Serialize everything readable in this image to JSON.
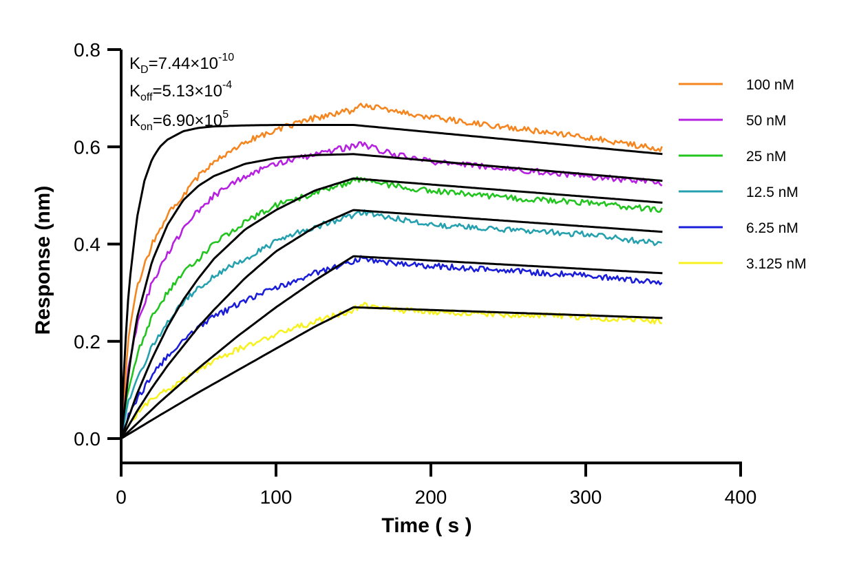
{
  "chart_data": {
    "type": "line",
    "xlabel": "Time ( s )",
    "ylabel": "Response (nm)",
    "xlim": [
      0,
      400
    ],
    "ylim": [
      -0.05,
      0.8
    ],
    "xticks": [
      "0",
      "100",
      "200",
      "300",
      "400"
    ],
    "yticks": [
      "0.0",
      "0.2",
      "0.4",
      "0.6",
      "0.8"
    ],
    "grid": false,
    "legend_position": "right",
    "annotations": {
      "kd": {
        "base": "K",
        "sub": "D",
        "value": "=7.44×10",
        "sup": "-10"
      },
      "koff": {
        "base": "K",
        "sub": "off",
        "value": "=5.13×10",
        "sup": "-4"
      },
      "kon": {
        "base": "K",
        "sub": "on",
        "value": "=6.90×10",
        "sup": "5"
      }
    },
    "fit_line_color": "#000000",
    "series": [
      {
        "name": "100 nM",
        "color": "#F5861F",
        "x": [
          0,
          5,
          10,
          20,
          30,
          40,
          50,
          60,
          80,
          100,
          120,
          140,
          150,
          155,
          175,
          200,
          250,
          300,
          350
        ],
        "y": [
          0,
          0.22,
          0.31,
          0.4,
          0.46,
          0.5,
          0.54,
          0.57,
          0.61,
          0.635,
          0.655,
          0.67,
          0.675,
          0.685,
          0.675,
          0.66,
          0.64,
          0.62,
          0.595
        ],
        "fit_x": [
          0,
          2,
          5,
          10,
          15,
          20,
          25,
          30,
          40,
          50,
          60,
          80,
          100,
          125,
          150,
          350
        ],
        "fit_y": [
          0,
          0.16,
          0.31,
          0.45,
          0.53,
          0.575,
          0.6,
          0.615,
          0.632,
          0.639,
          0.642,
          0.644,
          0.645,
          0.645,
          0.645,
          0.585
        ]
      },
      {
        "name": "50 nM",
        "color": "#B620E0",
        "x": [
          0,
          5,
          10,
          20,
          30,
          40,
          50,
          60,
          80,
          100,
          120,
          140,
          150,
          155,
          175,
          200,
          250,
          300,
          350
        ],
        "y": [
          0,
          0.15,
          0.23,
          0.32,
          0.38,
          0.43,
          0.47,
          0.5,
          0.54,
          0.565,
          0.58,
          0.595,
          0.6,
          0.605,
          0.585,
          0.57,
          0.555,
          0.54,
          0.525
        ],
        "fit_x": [
          0,
          5,
          10,
          20,
          30,
          40,
          50,
          60,
          80,
          100,
          125,
          150,
          350
        ],
        "fit_y": [
          0,
          0.14,
          0.245,
          0.365,
          0.44,
          0.49,
          0.52,
          0.54,
          0.565,
          0.577,
          0.583,
          0.585,
          0.53
        ]
      },
      {
        "name": "25 nM",
        "color": "#22C41F",
        "x": [
          0,
          5,
          10,
          20,
          30,
          40,
          50,
          60,
          80,
          100,
          120,
          140,
          150,
          155,
          175,
          200,
          250,
          300,
          350
        ],
        "y": [
          0,
          0.11,
          0.17,
          0.25,
          0.3,
          0.34,
          0.37,
          0.4,
          0.445,
          0.48,
          0.5,
          0.52,
          0.53,
          0.535,
          0.52,
          0.51,
          0.495,
          0.485,
          0.47
        ],
        "fit_x": [
          0,
          10,
          20,
          30,
          40,
          50,
          60,
          80,
          100,
          125,
          150,
          350
        ],
        "fit_y": [
          0,
          0.09,
          0.165,
          0.23,
          0.285,
          0.33,
          0.37,
          0.43,
          0.47,
          0.51,
          0.535,
          0.485
        ]
      },
      {
        "name": "12.5 nM",
        "color": "#24A0AE",
        "x": [
          0,
          5,
          10,
          20,
          30,
          40,
          50,
          60,
          80,
          100,
          120,
          140,
          150,
          155,
          175,
          200,
          250,
          300,
          350
        ],
        "y": [
          0,
          0.08,
          0.12,
          0.19,
          0.24,
          0.28,
          0.31,
          0.335,
          0.37,
          0.405,
          0.43,
          0.45,
          0.46,
          0.465,
          0.455,
          0.44,
          0.43,
          0.42,
          0.4
        ],
        "fit_x": [
          0,
          10,
          20,
          30,
          40,
          50,
          60,
          80,
          100,
          125,
          150,
          350
        ],
        "fit_y": [
          0,
          0.055,
          0.105,
          0.15,
          0.19,
          0.23,
          0.265,
          0.33,
          0.385,
          0.435,
          0.47,
          0.425
        ]
      },
      {
        "name": "6.25 nM",
        "color": "#1A1ED8",
        "x": [
          0,
          5,
          10,
          20,
          30,
          40,
          50,
          60,
          80,
          100,
          120,
          140,
          150,
          155,
          175,
          200,
          250,
          300,
          350
        ],
        "y": [
          0,
          0.05,
          0.08,
          0.13,
          0.17,
          0.2,
          0.23,
          0.25,
          0.285,
          0.31,
          0.335,
          0.355,
          0.365,
          0.37,
          0.36,
          0.355,
          0.345,
          0.335,
          0.32
        ],
        "fit_x": [
          0,
          25,
          50,
          75,
          100,
          125,
          150,
          350
        ],
        "fit_y": [
          0,
          0.075,
          0.145,
          0.21,
          0.27,
          0.325,
          0.375,
          0.34
        ]
      },
      {
        "name": "3.125 nM",
        "color": "#F7F21F",
        "x": [
          0,
          5,
          10,
          20,
          30,
          40,
          50,
          60,
          80,
          100,
          120,
          140,
          150,
          155,
          175,
          200,
          250,
          300,
          350
        ],
        "y": [
          0,
          0.03,
          0.05,
          0.08,
          0.1,
          0.12,
          0.14,
          0.16,
          0.19,
          0.215,
          0.235,
          0.255,
          0.265,
          0.275,
          0.265,
          0.26,
          0.255,
          0.25,
          0.24
        ],
        "fit_x": [
          0,
          25,
          50,
          75,
          100,
          125,
          150,
          350
        ],
        "fit_y": [
          0,
          0.048,
          0.095,
          0.14,
          0.185,
          0.23,
          0.27,
          0.248
        ]
      }
    ]
  }
}
